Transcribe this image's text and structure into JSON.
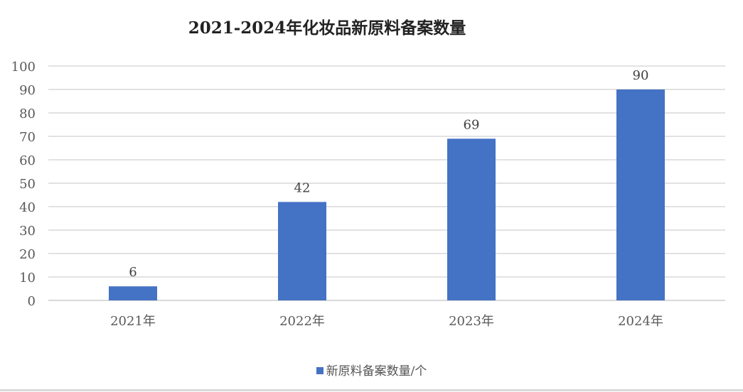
{
  "chart_data": {
    "type": "bar",
    "title": "2021-2024年化妆品新原料备案数量",
    "categories": [
      "2021年",
      "2022年",
      "2023年",
      "2024年"
    ],
    "series": [
      {
        "name": "新原料备案数量/个",
        "values": [
          6,
          42,
          69,
          90
        ],
        "color": "#4472C4"
      }
    ],
    "ylim": [
      0,
      100
    ],
    "yticks": [
      0,
      10,
      20,
      30,
      40,
      50,
      60,
      70,
      80,
      90,
      100
    ],
    "grid": true,
    "data_labels": true,
    "legend_position": "bottom",
    "xlabel": "",
    "ylabel": ""
  }
}
